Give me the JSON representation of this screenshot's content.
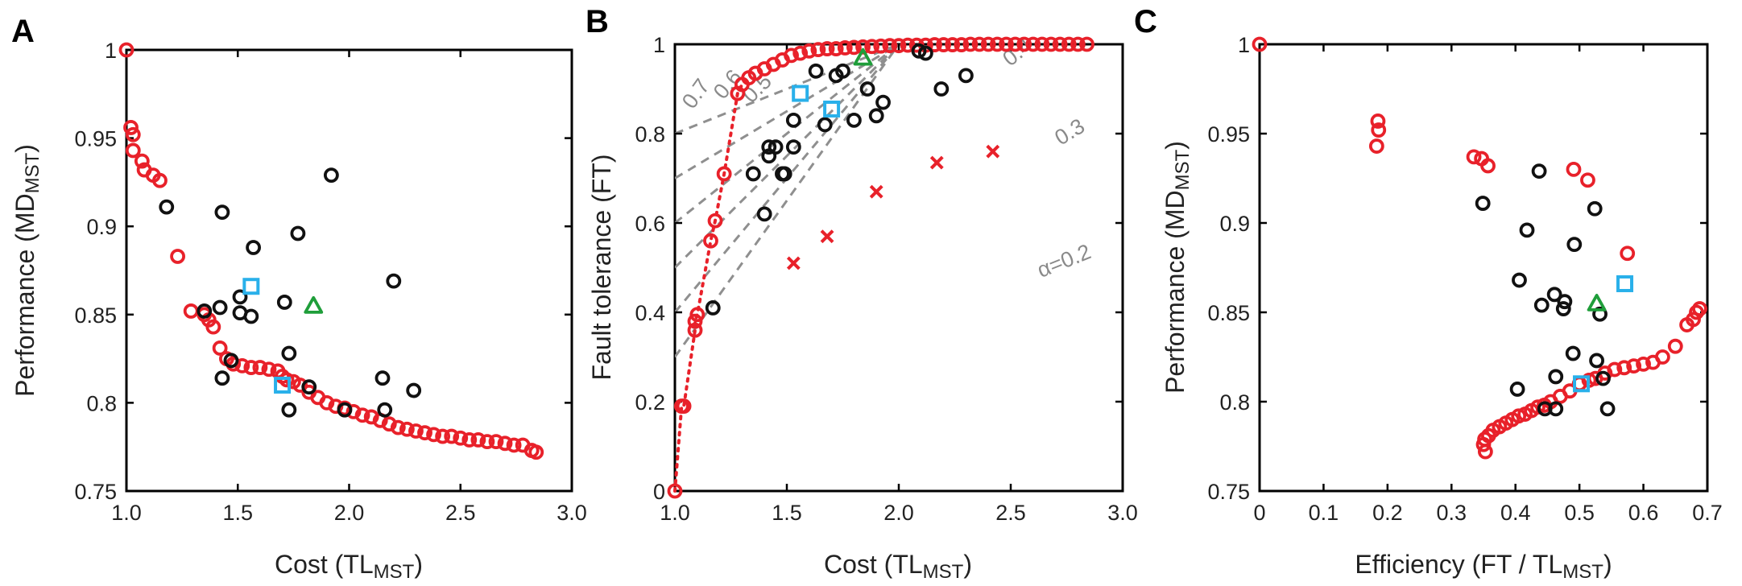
{
  "colors": {
    "pareto": "#e8212a",
    "other": "#111111",
    "square": "#29b0ea",
    "triangle": "#1f9e3a",
    "cross": "#e8212a",
    "alpha_line": "#8f8f8f"
  },
  "chart_data": [
    {
      "type": "scatter",
      "panel": "A",
      "xlabel": "Cost (TL",
      "xlabel_sub": "MST",
      "xlabel_end": ")",
      "ylabel": "Performance (MD",
      "ylabel_sub": "MST",
      "ylabel_end": ")",
      "xlim": [
        1.0,
        3.0
      ],
      "ylim": [
        0.75,
        1.0
      ],
      "xticks": [
        "1.0",
        "1.5",
        "2.0",
        "2.5",
        "3.0"
      ],
      "yticks": [
        "0.75",
        "0.8",
        "0.85",
        "0.9",
        "0.95",
        "1"
      ],
      "series": [
        {
          "marker": "circle",
          "color": "pareto",
          "points": [
            [
              1.0,
              1.0
            ],
            [
              1.02,
              0.956
            ],
            [
              1.03,
              0.952
            ],
            [
              1.03,
              0.943
            ],
            [
              1.07,
              0.937
            ],
            [
              1.08,
              0.932
            ],
            [
              1.12,
              0.929
            ],
            [
              1.15,
              0.926
            ],
            [
              1.23,
              0.883
            ],
            [
              1.29,
              0.852
            ],
            [
              1.35,
              0.85
            ],
            [
              1.37,
              0.847
            ],
            [
              1.39,
              0.843
            ],
            [
              1.42,
              0.831
            ],
            [
              1.45,
              0.825
            ],
            [
              1.48,
              0.822
            ],
            [
              1.52,
              0.821
            ],
            [
              1.56,
              0.82
            ],
            [
              1.6,
              0.82
            ],
            [
              1.64,
              0.819
            ],
            [
              1.68,
              0.818
            ],
            [
              1.7,
              0.815
            ],
            [
              1.72,
              0.813
            ],
            [
              1.75,
              0.812
            ],
            [
              1.78,
              0.81
            ],
            [
              1.82,
              0.806
            ],
            [
              1.86,
              0.803
            ],
            [
              1.9,
              0.8
            ],
            [
              1.94,
              0.798
            ],
            [
              1.98,
              0.797
            ],
            [
              2.02,
              0.795
            ],
            [
              2.06,
              0.793
            ],
            [
              2.1,
              0.792
            ],
            [
              2.14,
              0.79
            ],
            [
              2.18,
              0.788
            ],
            [
              2.22,
              0.786
            ],
            [
              2.26,
              0.785
            ],
            [
              2.3,
              0.784
            ],
            [
              2.34,
              0.783
            ],
            [
              2.38,
              0.782
            ],
            [
              2.42,
              0.781
            ],
            [
              2.46,
              0.781
            ],
            [
              2.5,
              0.78
            ],
            [
              2.54,
              0.779
            ],
            [
              2.58,
              0.779
            ],
            [
              2.62,
              0.778
            ],
            [
              2.66,
              0.778
            ],
            [
              2.7,
              0.777
            ],
            [
              2.74,
              0.776
            ],
            [
              2.78,
              0.776
            ],
            [
              2.82,
              0.773
            ],
            [
              2.84,
              0.772
            ]
          ]
        },
        {
          "marker": "circle",
          "color": "other",
          "points": [
            [
              1.18,
              0.911
            ],
            [
              1.35,
              0.852
            ],
            [
              1.42,
              0.854
            ],
            [
              1.43,
              0.908
            ],
            [
              1.43,
              0.814
            ],
            [
              1.47,
              0.824
            ],
            [
              1.51,
              0.86
            ],
            [
              1.51,
              0.851
            ],
            [
              1.56,
              0.849
            ],
            [
              1.57,
              0.888
            ],
            [
              1.71,
              0.857
            ],
            [
              1.73,
              0.828
            ],
            [
              1.73,
              0.796
            ],
            [
              1.77,
              0.896
            ],
            [
              1.82,
              0.809
            ],
            [
              1.92,
              0.929
            ],
            [
              1.98,
              0.796
            ],
            [
              2.15,
              0.814
            ],
            [
              2.16,
              0.796
            ],
            [
              2.2,
              0.869
            ],
            [
              2.29,
              0.807
            ]
          ]
        },
        {
          "marker": "square",
          "color": "square",
          "points": [
            [
              1.56,
              0.866
            ],
            [
              1.7,
              0.81
            ]
          ]
        },
        {
          "marker": "triangle",
          "color": "triangle",
          "points": [
            [
              1.84,
              0.855
            ]
          ]
        }
      ]
    },
    {
      "type": "scatter",
      "panel": "B",
      "xlabel": "Cost (TL",
      "xlabel_sub": "MST",
      "xlabel_end": ")",
      "ylabel": "Fault tolerance (FT)",
      "xlim": [
        1.0,
        3.0
      ],
      "ylim": [
        0.0,
        1.0
      ],
      "xticks": [
        "1.0",
        "1.5",
        "2.0",
        "2.5",
        "3.0"
      ],
      "yticks": [
        "0",
        "0.2",
        "0.4",
        "0.6",
        "0.8",
        "1"
      ],
      "alpha_lines": [
        {
          "alpha": 0.2,
          "label": "α=0.2",
          "label_x": 2.75,
          "label_y": 0.5
        },
        {
          "alpha": 0.3,
          "label": "0.3",
          "label_x": 2.78,
          "label_y": 0.79
        },
        {
          "alpha": 0.4,
          "label": "0.4",
          "label_x": 2.55,
          "label_y": 0.97
        },
        {
          "alpha": 0.5,
          "label": "0.5",
          "label_x": 1.39,
          "label_y": 0.89
        },
        {
          "alpha": 0.6,
          "label": "0.6",
          "label_x": 1.26,
          "label_y": 0.9
        },
        {
          "alpha": 0.7,
          "label": "0.7",
          "label_x": 1.12,
          "label_y": 0.88
        }
      ],
      "series": [
        {
          "marker": "circle",
          "color": "pareto",
          "dotted_curve": true,
          "points": [
            [
              1.0,
              0.0
            ],
            [
              1.03,
              0.19
            ],
            [
              1.04,
              0.19
            ],
            [
              1.09,
              0.36
            ],
            [
              1.09,
              0.38
            ],
            [
              1.1,
              0.395
            ],
            [
              1.16,
              0.56
            ],
            [
              1.18,
              0.605
            ],
            [
              1.22,
              0.71
            ],
            [
              1.28,
              0.89
            ],
            [
              1.3,
              0.91
            ],
            [
              1.33,
              0.925
            ],
            [
              1.36,
              0.935
            ],
            [
              1.4,
              0.945
            ],
            [
              1.44,
              0.955
            ],
            [
              1.48,
              0.965
            ],
            [
              1.52,
              0.975
            ],
            [
              1.56,
              0.98
            ],
            [
              1.6,
              0.985
            ],
            [
              1.64,
              0.988
            ],
            [
              1.68,
              0.99
            ],
            [
              1.72,
              0.99
            ],
            [
              1.76,
              0.992
            ],
            [
              1.8,
              0.993
            ],
            [
              1.84,
              0.994
            ],
            [
              1.88,
              0.995
            ],
            [
              1.92,
              0.996
            ],
            [
              1.96,
              0.997
            ],
            [
              2.0,
              0.997
            ],
            [
              2.04,
              0.998
            ],
            [
              2.08,
              0.998
            ],
            [
              2.12,
              0.998
            ],
            [
              2.16,
              0.999
            ],
            [
              2.2,
              0.999
            ],
            [
              2.24,
              0.999
            ],
            [
              2.28,
              0.999
            ],
            [
              2.32,
              1.0
            ],
            [
              2.36,
              1.0
            ],
            [
              2.4,
              1.0
            ],
            [
              2.44,
              1.0
            ],
            [
              2.48,
              1.0
            ],
            [
              2.52,
              1.0
            ],
            [
              2.56,
              1.0
            ],
            [
              2.6,
              1.0
            ],
            [
              2.64,
              1.0
            ],
            [
              2.68,
              1.0
            ],
            [
              2.72,
              1.0
            ],
            [
              2.76,
              1.0
            ],
            [
              2.8,
              1.0
            ],
            [
              2.84,
              1.0
            ]
          ]
        },
        {
          "marker": "circle",
          "color": "other",
          "points": [
            [
              1.17,
              0.41
            ],
            [
              1.35,
              0.71
            ],
            [
              1.4,
              0.62
            ],
            [
              1.42,
              0.75
            ],
            [
              1.42,
              0.77
            ],
            [
              1.45,
              0.77
            ],
            [
              1.48,
              0.71
            ],
            [
              1.49,
              0.71
            ],
            [
              1.53,
              0.83
            ],
            [
              1.53,
              0.77
            ],
            [
              1.63,
              0.94
            ],
            [
              1.67,
              0.82
            ],
            [
              1.72,
              0.93
            ],
            [
              1.75,
              0.94
            ],
            [
              1.8,
              0.83
            ],
            [
              1.86,
              0.9
            ],
            [
              1.9,
              0.84
            ],
            [
              1.93,
              0.87
            ],
            [
              2.09,
              0.985
            ],
            [
              2.12,
              0.98
            ],
            [
              2.19,
              0.9
            ],
            [
              2.3,
              0.93
            ]
          ]
        },
        {
          "marker": "square",
          "color": "square",
          "points": [
            [
              1.56,
              0.89
            ],
            [
              1.7,
              0.855
            ]
          ]
        },
        {
          "marker": "triangle",
          "color": "triangle",
          "points": [
            [
              1.84,
              0.97
            ]
          ]
        },
        {
          "marker": "cross",
          "color": "cross",
          "points": [
            [
              1.53,
              0.51
            ],
            [
              1.68,
              0.57
            ],
            [
              1.9,
              0.67
            ],
            [
              2.17,
              0.735
            ],
            [
              2.42,
              0.76
            ]
          ]
        }
      ]
    },
    {
      "type": "scatter",
      "panel": "C",
      "xlabel": "Efficiency (FT / TL",
      "xlabel_sub": "MST",
      "xlabel_end": ")",
      "ylabel": "Performance (MD",
      "ylabel_sub": "MST",
      "ylabel_end": ")",
      "xlim": [
        0.0,
        0.7
      ],
      "ylim": [
        0.75,
        1.0
      ],
      "xticks": [
        "0",
        "0.1",
        "0.2",
        "0.3",
        "0.4",
        "0.5",
        "0.6",
        "0.7"
      ],
      "yticks": [
        "0.75",
        "0.8",
        "0.85",
        "0.9",
        "0.95",
        "1"
      ],
      "series": [
        {
          "marker": "circle",
          "color": "pareto",
          "points": [
            [
              0.0,
              1.0
            ],
            [
              0.185,
              0.957
            ],
            [
              0.186,
              0.952
            ],
            [
              0.183,
              0.943
            ],
            [
              0.335,
              0.937
            ],
            [
              0.347,
              0.936
            ],
            [
              0.357,
              0.932
            ],
            [
              0.491,
              0.93
            ],
            [
              0.513,
              0.924
            ],
            [
              0.575,
              0.883
            ],
            [
              0.688,
              0.852
            ],
            [
              0.683,
              0.85
            ],
            [
              0.678,
              0.846
            ],
            [
              0.668,
              0.843
            ],
            [
              0.65,
              0.831
            ],
            [
              0.63,
              0.825
            ],
            [
              0.615,
              0.822
            ],
            [
              0.6,
              0.821
            ],
            [
              0.585,
              0.82
            ],
            [
              0.57,
              0.819
            ],
            [
              0.555,
              0.818
            ],
            [
              0.54,
              0.816
            ],
            [
              0.525,
              0.813
            ],
            [
              0.515,
              0.812
            ],
            [
              0.5,
              0.81
            ],
            [
              0.485,
              0.806
            ],
            [
              0.47,
              0.803
            ],
            [
              0.455,
              0.8
            ],
            [
              0.445,
              0.798
            ],
            [
              0.435,
              0.797
            ],
            [
              0.425,
              0.795
            ],
            [
              0.415,
              0.793
            ],
            [
              0.405,
              0.792
            ],
            [
              0.395,
              0.79
            ],
            [
              0.385,
              0.788
            ],
            [
              0.375,
              0.786
            ],
            [
              0.365,
              0.784
            ],
            [
              0.358,
              0.781
            ],
            [
              0.352,
              0.779
            ],
            [
              0.35,
              0.776
            ],
            [
              0.353,
              0.772
            ]
          ]
        },
        {
          "marker": "circle",
          "color": "other",
          "points": [
            [
              0.349,
              0.911
            ],
            [
              0.437,
              0.929
            ],
            [
              0.524,
              0.908
            ],
            [
              0.418,
              0.896
            ],
            [
              0.492,
              0.888
            ],
            [
              0.406,
              0.868
            ],
            [
              0.441,
              0.854
            ],
            [
              0.461,
              0.86
            ],
            [
              0.477,
              0.856
            ],
            [
              0.475,
              0.852
            ],
            [
              0.532,
              0.849
            ],
            [
              0.49,
              0.827
            ],
            [
              0.527,
              0.823
            ],
            [
              0.463,
              0.814
            ],
            [
              0.537,
              0.813
            ],
            [
              0.403,
              0.807
            ],
            [
              0.446,
              0.796
            ],
            [
              0.463,
              0.796
            ],
            [
              0.544,
              0.796
            ]
          ]
        },
        {
          "marker": "square",
          "color": "square",
          "points": [
            [
              0.571,
              0.866
            ],
            [
              0.503,
              0.81
            ]
          ]
        },
        {
          "marker": "triangle",
          "color": "triangle",
          "points": [
            [
              0.527,
              0.855
            ]
          ]
        }
      ]
    }
  ]
}
